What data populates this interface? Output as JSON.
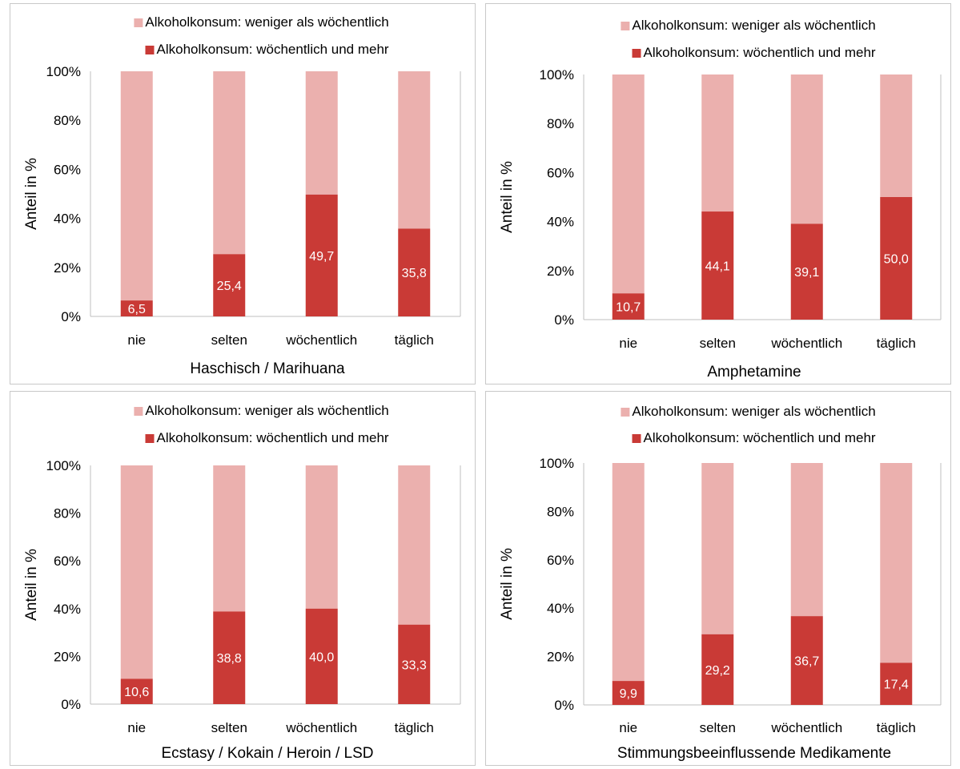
{
  "colors": {
    "lower": "#ebb0ae",
    "upper": "#c93a36",
    "axis": "#bfbfbf",
    "border": "#c8c8c8"
  },
  "chart_data": [
    {
      "type": "bar",
      "stacked": true,
      "percent_stacked": true,
      "title": "",
      "xlabel": "Haschisch / Marihuana",
      "ylabel": "Anteil in %",
      "ylim": [
        0,
        100
      ],
      "yticks": [
        "0%",
        "20%",
        "40%",
        "60%",
        "80%",
        "100%"
      ],
      "categories": [
        "nie",
        "selten",
        "wöchentlich",
        "täglich"
      ],
      "legend": "top",
      "series": [
        {
          "name": "Alkoholkonsum: weniger als wöchentlich",
          "values": [
            93.5,
            74.6,
            50.3,
            64.2
          ]
        },
        {
          "name": "Alkoholkonsum: wöchentlich und mehr",
          "values": [
            6.5,
            25.4,
            49.7,
            35.8
          ],
          "labels": [
            "6,5",
            "25,4",
            "49,7",
            "35,8"
          ]
        }
      ]
    },
    {
      "type": "bar",
      "stacked": true,
      "percent_stacked": true,
      "title": "",
      "xlabel": "Amphetamine",
      "ylabel": "Anteil in %",
      "ylim": [
        0,
        100
      ],
      "yticks": [
        "0%",
        "20%",
        "40%",
        "60%",
        "80%",
        "100%"
      ],
      "categories": [
        "nie",
        "selten",
        "wöchentlich",
        "täglich"
      ],
      "legend": "top",
      "series": [
        {
          "name": "Alkoholkonsum: weniger als wöchentlich",
          "values": [
            89.3,
            55.9,
            60.9,
            50.0
          ]
        },
        {
          "name": "Alkoholkonsum: wöchentlich und mehr",
          "values": [
            10.7,
            44.1,
            39.1,
            50.0
          ],
          "labels": [
            "10,7",
            "44,1",
            "39,1",
            "50,0"
          ]
        }
      ]
    },
    {
      "type": "bar",
      "stacked": true,
      "percent_stacked": true,
      "title": "",
      "xlabel": "Ecstasy / Kokain / Heroin / LSD",
      "ylabel": "Anteil in %",
      "ylim": [
        0,
        100
      ],
      "yticks": [
        "0%",
        "20%",
        "40%",
        "60%",
        "80%",
        "100%"
      ],
      "categories": [
        "nie",
        "selten",
        "wöchentlich",
        "täglich"
      ],
      "legend": "top",
      "series": [
        {
          "name": "Alkoholkonsum: weniger als wöchentlich",
          "values": [
            89.4,
            61.2,
            60.0,
            66.7
          ]
        },
        {
          "name": "Alkoholkonsum: wöchentlich und mehr",
          "values": [
            10.6,
            38.8,
            40.0,
            33.3
          ],
          "labels": [
            "10,6",
            "38,8",
            "40,0",
            "33,3"
          ]
        }
      ]
    },
    {
      "type": "bar",
      "stacked": true,
      "percent_stacked": true,
      "title": "",
      "xlabel": "Stimmungsbeeinflussende Medikamente",
      "ylabel": "Anteil in %",
      "ylim": [
        0,
        100
      ],
      "yticks": [
        "0%",
        "20%",
        "40%",
        "60%",
        "80%",
        "100%"
      ],
      "categories": [
        "nie",
        "selten",
        "wöchentlich",
        "täglich"
      ],
      "legend": "top",
      "series": [
        {
          "name": "Alkoholkonsum: weniger als wöchentlich",
          "values": [
            90.1,
            70.8,
            63.3,
            82.6
          ]
        },
        {
          "name": "Alkoholkonsum: wöchentlich und mehr",
          "values": [
            9.9,
            29.2,
            36.7,
            17.4
          ],
          "labels": [
            "9,9",
            "29,2",
            "36,7",
            "17,4"
          ]
        }
      ]
    }
  ]
}
